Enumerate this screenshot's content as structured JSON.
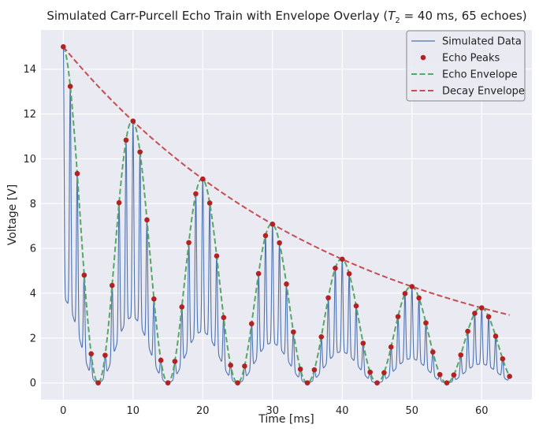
{
  "chart_data": {
    "type": "line",
    "title": "Simulated Carr-Purcell Echo Train with Envelope Overlay (T₂ = 40 ms, 65 echoes)",
    "title_parts": {
      "prefix": "Simulated Carr-Purcell Echo Train with Envelope Overlay (",
      "symbol": "T",
      "subscript": "2",
      "suffix": " = 40 ms, 65 echoes)"
    },
    "xlabel": "Time [ms]",
    "ylabel": "Voltage [V]",
    "xlim": [
      -3.2,
      67.2
    ],
    "ylim": [
      -0.75,
      15.75
    ],
    "xticks": [
      0,
      10,
      20,
      30,
      40,
      50,
      60
    ],
    "yticks": [
      0,
      2,
      4,
      6,
      8,
      10,
      12,
      14
    ],
    "grid": true,
    "legend_position": "top-right",
    "T2_ms": 40,
    "echo_count": 65,
    "echo_spacing_ms": 1,
    "A0_volts": 15,
    "modulation_period_ms": 10,
    "series": [
      {
        "name": "Simulated Data",
        "kind": "line",
        "color": "#4c72b0"
      },
      {
        "name": "Echo Peaks",
        "kind": "scatter",
        "color": "#b22222"
      },
      {
        "name": "Echo Envelope",
        "kind": "dashed",
        "color": "#55a868"
      },
      {
        "name": "Decay Envelope",
        "kind": "dashed",
        "color": "#c44e52"
      }
    ]
  },
  "colors": {
    "background": "#eaeaf2",
    "grid": "#ffffff"
  }
}
